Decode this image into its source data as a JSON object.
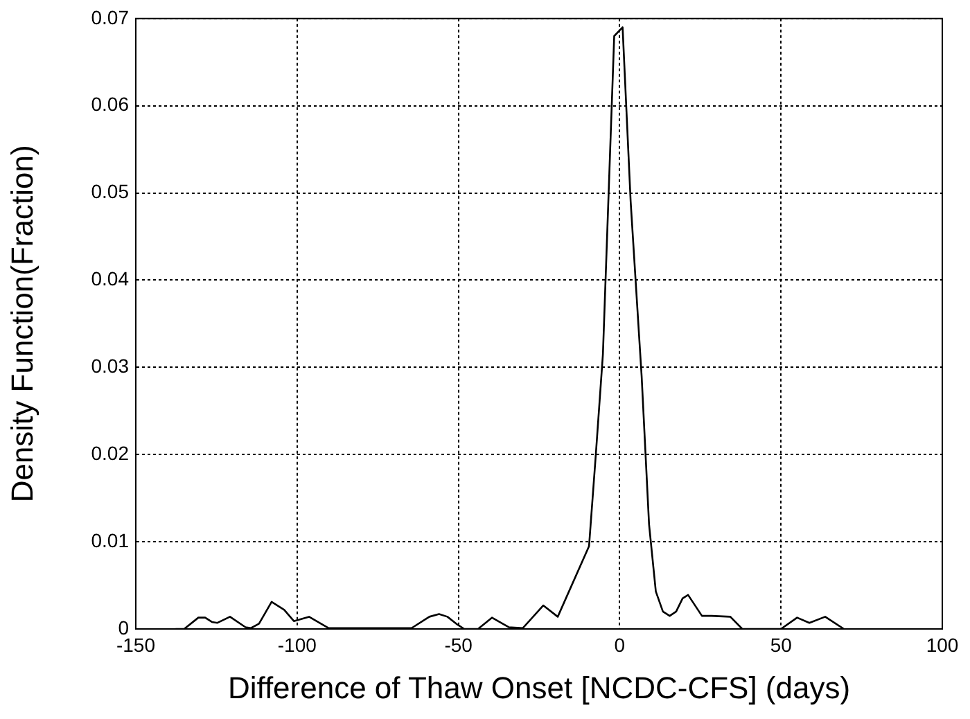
{
  "chart_data": {
    "type": "line",
    "xlabel": "Difference of Thaw Onset [NCDC-CFS] (days)",
    "ylabel": "Density Function(Fraction)",
    "xlim": [
      -150,
      100
    ],
    "xticks": [
      -150,
      -100,
      -50,
      0,
      50,
      100
    ],
    "ylim": [
      0,
      0.07
    ],
    "yticks": [
      0,
      0.01,
      0.02,
      0.03,
      0.04,
      0.05,
      0.06,
      0.07
    ],
    "grid": true,
    "marker": "none",
    "line_style": "solid",
    "series": [
      {
        "color": "#000000",
        "x": [
          -137.7,
          -135,
          -130.6,
          -128.5,
          -126.4,
          -124.7,
          -120.8,
          -116,
          -114.3,
          -111.8,
          -107.9,
          -104,
          -101,
          -96.3,
          -90.3,
          -64.5,
          -59,
          -56,
          -53.4,
          -50.3,
          -48.2,
          -43.9,
          -39.6,
          -34.4,
          -30,
          -23.7,
          -19.2,
          -9.5,
          -7.4,
          -5.2,
          -1.7,
          0.9,
          3.4,
          6.8,
          9.1,
          11.2,
          13.4,
          15.5,
          17.5,
          19.5,
          21.2,
          25.5,
          28.5,
          34.3,
          38,
          50,
          55,
          58.8,
          63.7,
          69.5
        ],
        "values": [
          0,
          0,
          0.0013,
          0.0013,
          0.0008,
          0.0007,
          0.0014,
          0.0002,
          0.0001,
          0.0006,
          0.0031,
          0.0022,
          0.0009,
          0.0014,
          0.0001,
          0.0001,
          0.0014,
          0.0017,
          0.0014,
          0.0005,
          0,
          0,
          0.0013,
          0.0002,
          0.0001,
          0.0027,
          0.0014,
          0.0095,
          0.02,
          0.0315,
          0.068,
          0.069,
          0.049,
          0.029,
          0.012,
          0.0043,
          0.002,
          0.0015,
          0.002,
          0.0035,
          0.0039,
          0.0015,
          0.0015,
          0.0014,
          0,
          0,
          0.0013,
          0.0007,
          0.0014,
          0
        ]
      }
    ]
  }
}
